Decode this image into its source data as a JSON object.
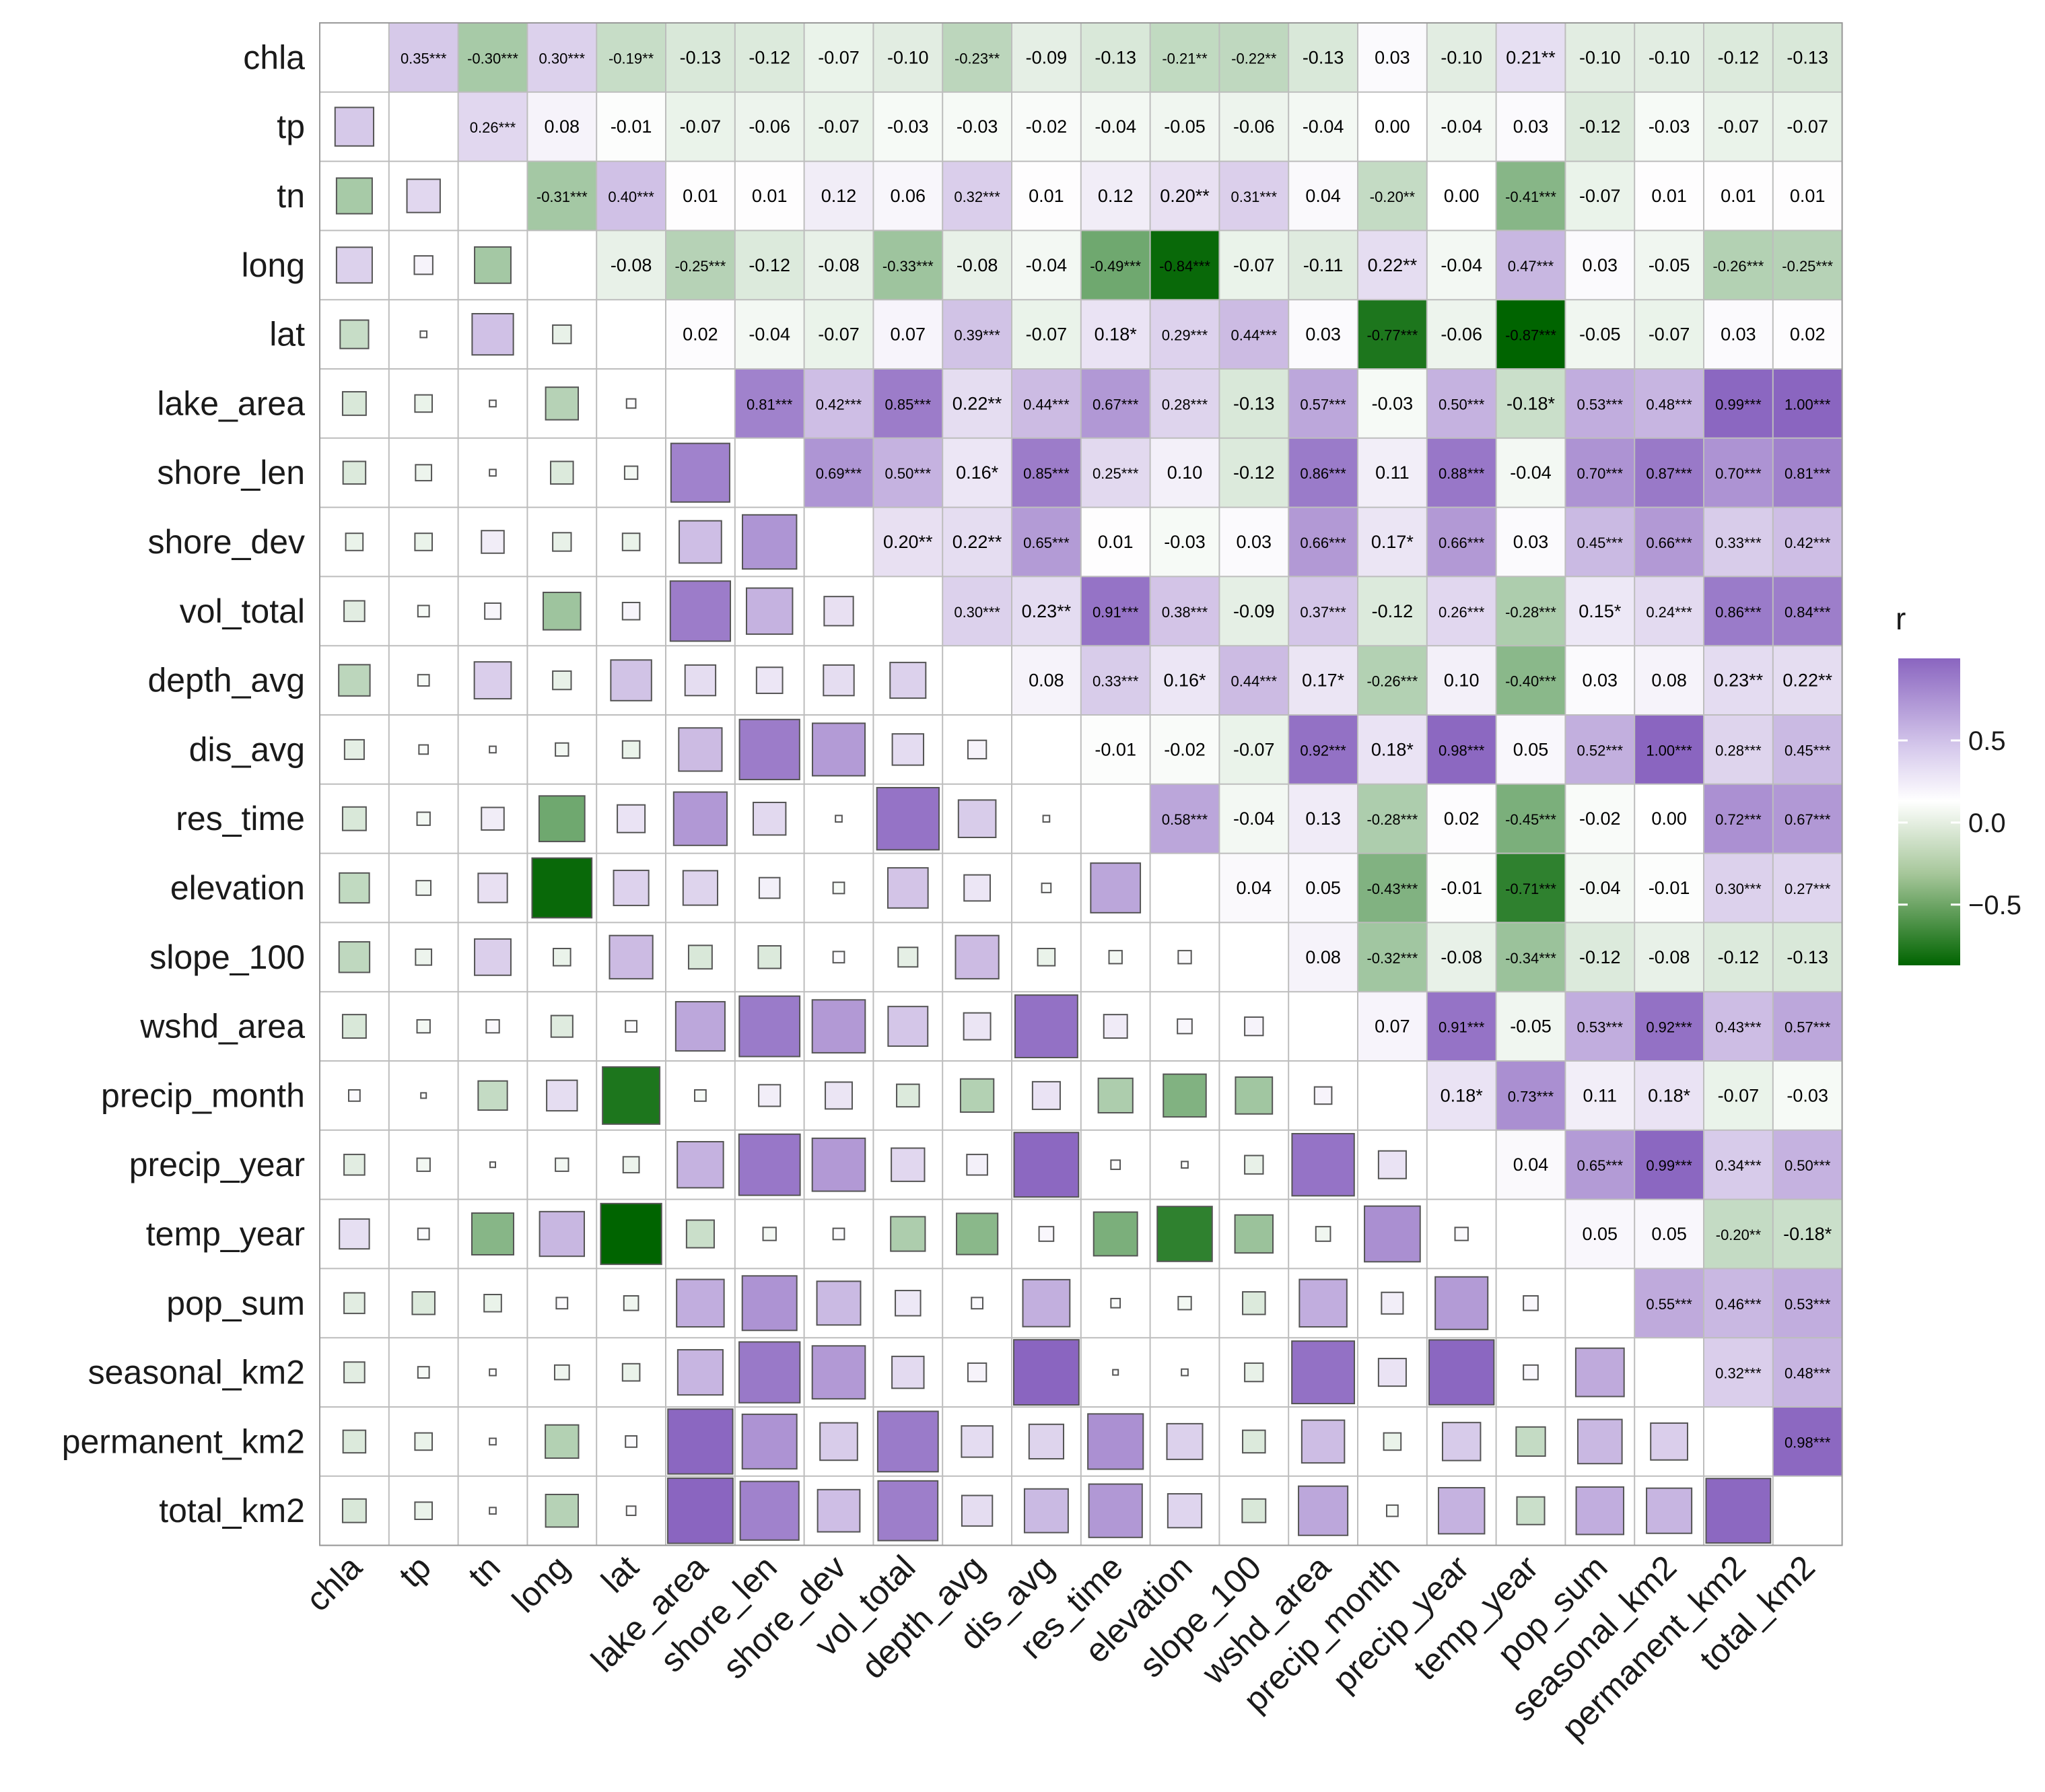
{
  "chart_data": {
    "type": "heatmap",
    "subtype": "mixed correlation matrix (upper: colored tiles with r labels; lower: colored squares sized by |r|)",
    "title": "",
    "xlabel": "",
    "ylabel": "",
    "variables": [
      "chla",
      "tp",
      "tn",
      "long",
      "lat",
      "lake_area",
      "shore_len",
      "shore_dev",
      "vol_total",
      "depth_avg",
      "dis_avg",
      "res_time",
      "elevation",
      "slope_100",
      "wshd_area",
      "precip_month",
      "precip_year",
      "temp_year",
      "pop_sum",
      "seasonal_km2",
      "permanent_km2",
      "total_km2"
    ],
    "upper_labels": [
      [
        "0.35***",
        "-0.30***",
        "0.30***",
        "-0.19**",
        "-0.13",
        "-0.12",
        "-0.07",
        "-0.10",
        "-0.23**",
        "-0.09",
        "-0.13",
        "-0.21**",
        "-0.22**",
        "-0.13",
        "0.03",
        "-0.10",
        "0.21**",
        "-0.10",
        "-0.10",
        "-0.12",
        "-0.13"
      ],
      [
        "0.26***",
        "0.08",
        "-0.01",
        "-0.07",
        "-0.06",
        "-0.07",
        "-0.03",
        "-0.03",
        "-0.02",
        "-0.04",
        "-0.05",
        "-0.06",
        "-0.04",
        "0.00",
        "-0.04",
        "0.03",
        "-0.12",
        "-0.03",
        "-0.07",
        "-0.07"
      ],
      [
        "-0.31***",
        "0.40***",
        "0.01",
        "0.01",
        "0.12",
        "0.06",
        "0.32***",
        "0.01",
        "0.12",
        "0.20**",
        "0.31***",
        "0.04",
        "-0.20**",
        "0.00",
        "-0.41***",
        "-0.07",
        "0.01",
        "0.01",
        "0.01"
      ],
      [
        "-0.08",
        "-0.25***",
        "-0.12",
        "-0.08",
        "-0.33***",
        "-0.08",
        "-0.04",
        "-0.49***",
        "-0.84***",
        "-0.07",
        "-0.11",
        "0.22**",
        "-0.04",
        "0.47***",
        "0.03",
        "-0.05",
        "-0.26***",
        "-0.25***"
      ],
      [
        "0.02",
        "-0.04",
        "-0.07",
        "0.07",
        "0.39***",
        "-0.07",
        "0.18*",
        "0.29***",
        "0.44***",
        "0.03",
        "-0.77***",
        "-0.06",
        "-0.87***",
        "-0.05",
        "-0.07",
        "0.03",
        "0.02"
      ],
      [
        "0.81***",
        "0.42***",
        "0.85***",
        "0.22**",
        "0.44***",
        "0.67***",
        "0.28***",
        "-0.13",
        "0.57***",
        "-0.03",
        "0.50***",
        "-0.18*",
        "0.53***",
        "0.48***",
        "0.99***",
        "1.00***"
      ],
      [
        "0.69***",
        "0.50***",
        "0.16*",
        "0.85***",
        "0.25***",
        "0.10",
        "-0.12",
        "0.86***",
        "0.11",
        "0.88***",
        "-0.04",
        "0.70***",
        "0.87***",
        "0.70***",
        "0.81***"
      ],
      [
        "0.20**",
        "0.22**",
        "0.65***",
        "0.01",
        "-0.03",
        "0.03",
        "0.66***",
        "0.17*",
        "0.66***",
        "0.03",
        "0.45***",
        "0.66***",
        "0.33***",
        "0.42***"
      ],
      [
        "0.30***",
        "0.23**",
        "0.91***",
        "0.38***",
        "-0.09",
        "0.37***",
        "-0.12",
        "0.26***",
        "-0.28***",
        "0.15*",
        "0.24***",
        "0.86***",
        "0.84***"
      ],
      [
        "0.08",
        "0.33***",
        "0.16*",
        "0.44***",
        "0.17*",
        "-0.26***",
        "0.10",
        "-0.40***",
        "0.03",
        "0.08",
        "0.23**",
        "0.22**"
      ],
      [
        "-0.01",
        "-0.02",
        "-0.07",
        "0.92***",
        "0.18*",
        "0.98***",
        "0.05",
        "0.52***",
        "1.00***",
        "0.28***",
        "0.45***"
      ],
      [
        "0.58***",
        "-0.04",
        "0.13",
        "-0.28***",
        "0.02",
        "-0.45***",
        "-0.02",
        "0.00",
        "0.72***",
        "0.67***"
      ],
      [
        "0.04",
        "0.05",
        "-0.43***",
        "-0.01",
        "-0.71***",
        "-0.04",
        "-0.01",
        "0.30***",
        "0.27***"
      ],
      [
        "0.08",
        "-0.32***",
        "-0.08",
        "-0.34***",
        "-0.12",
        "-0.08",
        "-0.12",
        "-0.13"
      ],
      [
        "0.07",
        "0.91***",
        "-0.05",
        "0.53***",
        "0.92***",
        "0.43***",
        "0.57***"
      ],
      [
        "0.18*",
        "0.73***",
        "0.11",
        "0.18*",
        "-0.07",
        "-0.03"
      ],
      [
        "0.04",
        "0.65***",
        "0.99***",
        "0.34***",
        "0.50***"
      ],
      [
        "0.05",
        "0.05",
        "-0.20**",
        "-0.18*"
      ],
      [
        "0.55***",
        "0.46***",
        "0.53***"
      ],
      [
        "0.32***",
        "0.48***"
      ],
      [
        "0.98***"
      ],
      []
    ],
    "color_scale": {
      "title": "r",
      "low_color": "#006400",
      "mid_color": "#ffffff",
      "high_color": "#8a65c0",
      "domain": [
        -0.87,
        1.0
      ],
      "tick_labels": [
        "0.5",
        "0.0",
        "−0.5"
      ],
      "tick_values": [
        0.5,
        0.0,
        -0.5
      ]
    }
  }
}
